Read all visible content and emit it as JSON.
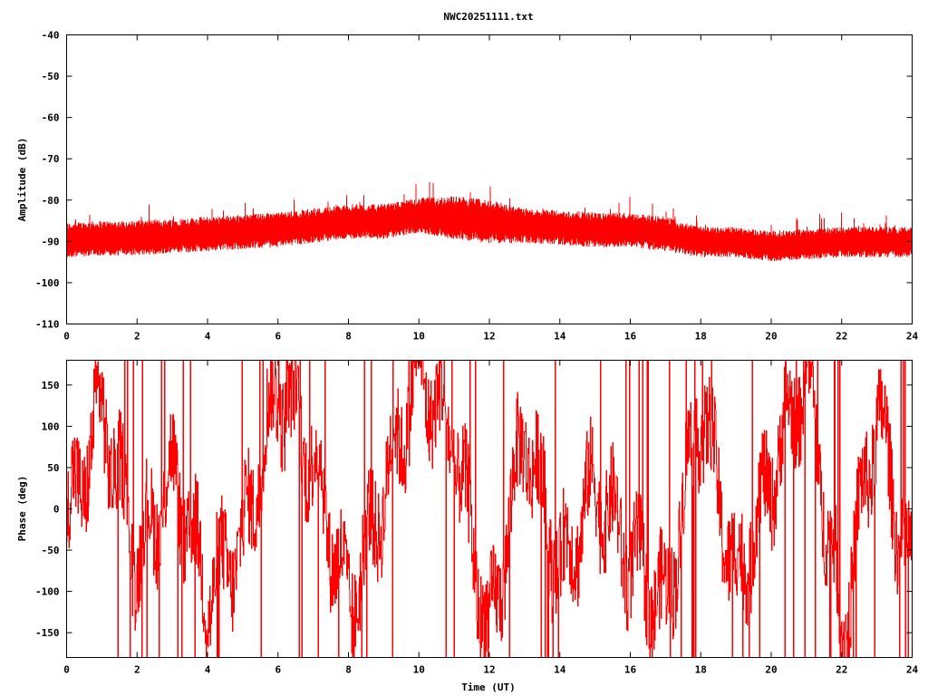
{
  "chart_data": [
    {
      "type": "line",
      "title": "NWC20251111.txt",
      "xlabel": "",
      "ylabel": "Amplitude (dB)",
      "xlim": [
        0,
        24
      ],
      "ylim": [
        -110,
        -40
      ],
      "xticks": [
        "0",
        "2",
        "4",
        "6",
        "8",
        "10",
        "12",
        "14",
        "16",
        "18",
        "20",
        "22",
        "24"
      ],
      "yticks": [
        "-40",
        "-50",
        "-60",
        "-70",
        "-80",
        "-90",
        "-100",
        "-110"
      ],
      "series": [
        {
          "name": "amplitude",
          "color": "#ff0000",
          "x_hours": [
            0,
            1,
            2,
            3,
            4,
            5,
            6,
            7,
            8,
            9,
            10,
            11,
            12,
            13,
            14,
            15,
            16,
            17,
            18,
            19,
            20,
            21,
            22,
            23,
            24
          ],
          "mean": [
            -89.5,
            -89,
            -89,
            -88.5,
            -88,
            -87.5,
            -87,
            -86,
            -85,
            -85,
            -83.5,
            -84,
            -85,
            -86,
            -86.5,
            -87,
            -87,
            -88,
            -90,
            -90,
            -91,
            -90.5,
            -90,
            -90,
            -90
          ],
          "spread": [
            4,
            4,
            4,
            4,
            4,
            4,
            4,
            4,
            4,
            4,
            4,
            5,
            5,
            4,
            4,
            4,
            4,
            4,
            3.5,
            3.5,
            3.5,
            3.5,
            3.5,
            3.5,
            3.5
          ]
        }
      ]
    },
    {
      "type": "line",
      "xlabel": "Time (UT)",
      "ylabel": "Phase (deg)",
      "xlim": [
        0,
        24
      ],
      "ylim": [
        -180,
        180
      ],
      "xticks": [
        "0",
        "2",
        "4",
        "6",
        "8",
        "10",
        "12",
        "14",
        "16",
        "18",
        "20",
        "22",
        "24"
      ],
      "yticks": [
        "150",
        "100",
        "50",
        "0",
        "-50",
        "-100",
        "-150"
      ],
      "series": [
        {
          "name": "phase",
          "color": "#ff0000",
          "x_hours": [
            0,
            1,
            2,
            3,
            4,
            5,
            6,
            7,
            8,
            9,
            10,
            11,
            12,
            13,
            14,
            15,
            16,
            17,
            18,
            19,
            20,
            21,
            22,
            23,
            24
          ],
          "values": [
            -20,
            120,
            -60,
            40,
            -100,
            -40,
            150,
            60,
            -120,
            20,
            170,
            80,
            -160,
            100,
            -80,
            30,
            -60,
            -120,
            130,
            -90,
            40,
            170,
            -150,
            120,
            -100
          ]
        }
      ]
    }
  ]
}
